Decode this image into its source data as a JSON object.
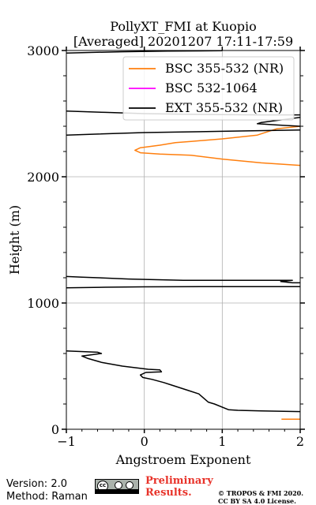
{
  "chart_data": {
    "type": "line",
    "title": "PollyXT_FMI at Kuopio",
    "subtitle": "[Averaged] 20201207 17:11-17:59",
    "xlabel": "Angstroem Exponent",
    "ylabel": "Height (m)",
    "xlim": [
      -1,
      2
    ],
    "ylim": [
      0,
      3000
    ],
    "xticks": [
      -1,
      0,
      1,
      2
    ],
    "yticks": [
      0,
      1000,
      2000,
      3000
    ],
    "xtick_labels": [
      "−1",
      "0",
      "1",
      "2"
    ],
    "ytick_labels": [
      "0",
      "1000",
      "2000",
      "3000"
    ],
    "grid": true,
    "legend_position": "top-right",
    "series": [
      {
        "name": "BSC 355-532 (NR)",
        "color": "#ff7f0e",
        "segments": [
          [
            [
              1.76,
              80
            ],
            [
              2.0,
              80
            ]
          ],
          [
            [
              2.0,
              2400
            ],
            [
              1.7,
              2380
            ],
            [
              1.45,
              2330
            ],
            [
              1.0,
              2300
            ],
            [
              0.6,
              2280
            ],
            [
              0.4,
              2270
            ],
            [
              0.2,
              2250
            ],
            [
              -0.05,
              2230
            ],
            [
              -0.12,
              2210
            ],
            [
              -0.05,
              2190
            ],
            [
              0.2,
              2180
            ],
            [
              0.6,
              2170
            ],
            [
              1.0,
              2140
            ],
            [
              1.5,
              2110
            ],
            [
              2.0,
              2090
            ]
          ]
        ]
      },
      {
        "name": "BSC 532-1064",
        "color": "#ff00ff",
        "segments": []
      },
      {
        "name": "EXT 355-532 (NR)",
        "color": "#000000",
        "segments": [
          [
            [
              2.0,
              140
            ],
            [
              1.5,
              145
            ],
            [
              1.2,
              150
            ],
            [
              1.08,
              155
            ],
            [
              0.9,
              200
            ],
            [
              0.82,
              215
            ],
            [
              0.7,
              280
            ],
            [
              0.55,
              310
            ],
            [
              0.35,
              350
            ],
            [
              0.25,
              370
            ],
            [
              0.1,
              395
            ],
            [
              -0.02,
              410
            ],
            [
              -0.05,
              430
            ],
            [
              0.02,
              450
            ],
            [
              0.22,
              455
            ],
            [
              0.2,
              470
            ],
            [
              0.05,
              475
            ],
            [
              -0.28,
              500
            ],
            [
              -0.55,
              530
            ],
            [
              -0.72,
              560
            ],
            [
              -0.8,
              580
            ],
            [
              -0.55,
              600
            ],
            [
              -0.6,
              610
            ],
            [
              -1.0,
              620
            ]
          ],
          [
            [
              -1.0,
              1120
            ],
            [
              -0.5,
              1125
            ],
            [
              0.0,
              1128
            ],
            [
              1.0,
              1130
            ],
            [
              2.0,
              1130
            ]
          ],
          [
            [
              2.0,
              1160
            ],
            [
              1.9,
              1160
            ],
            [
              1.75,
              1170
            ],
            [
              1.9,
              1180
            ],
            [
              0.5,
              1180
            ],
            [
              -0.2,
              1190
            ],
            [
              -0.8,
              1205
            ],
            [
              -1.0,
              1210
            ]
          ],
          [
            [
              -1.0,
              2330
            ],
            [
              0.0,
              2350
            ],
            [
              1.0,
              2360
            ],
            [
              2.0,
              2370
            ]
          ],
          [
            [
              2.0,
              2400
            ],
            [
              1.7,
              2410
            ],
            [
              1.45,
              2420
            ],
            [
              1.5,
              2430
            ],
            [
              2.0,
              2470
            ]
          ],
          [
            [
              -1.0,
              2520
            ],
            [
              -0.5,
              2510
            ],
            [
              0.0,
              2500
            ],
            [
              0.5,
              2495
            ],
            [
              1.0,
              2492
            ],
            [
              1.5,
              2490
            ],
            [
              2.0,
              2490
            ]
          ],
          [
            [
              -1.0,
              2980
            ],
            [
              -0.3,
              2990
            ],
            [
              0.3,
              2995
            ],
            [
              1.0,
              2998
            ]
          ]
        ]
      }
    ]
  },
  "footer": {
    "version": "Version: 2.0",
    "method": "Method: Raman",
    "preliminary_line1": "Preliminary",
    "preliminary_line2": "Results.",
    "license_line1": "© TROPOS & FMI 2020.",
    "license_line2": "CC BY SA 4.0 License.",
    "badge_icon": "cc-by-sa-badge"
  }
}
